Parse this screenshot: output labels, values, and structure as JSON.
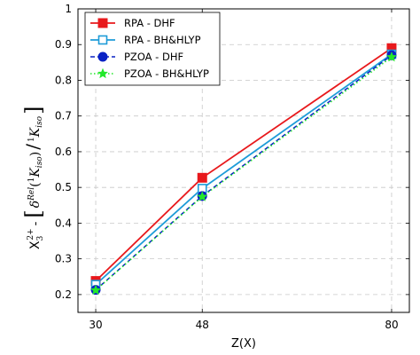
{
  "chart_data": {
    "type": "line",
    "x": [
      30,
      48,
      80
    ],
    "xlabel": "Z(X)",
    "ylabel_prefix": "X",
    "ylabel_sub": "3",
    "ylabel_sup": "2+",
    "ylabel_dash": "-",
    "ylabel_delta": "δ",
    "ylabel_rel": "Rel",
    "ylabel_paren_open": "(",
    "ylabel_paren_close": ")",
    "ylabel_one": "1",
    "ylabel_K": "K",
    "ylabel_iso": "iso",
    "ylabel_slash": "/",
    "xlim": [
      27,
      83
    ],
    "ylim": [
      0.15,
      1.0
    ],
    "xticks": [
      "30",
      "48",
      "80"
    ],
    "yticks": [
      "0.2",
      "0.3",
      "0.4",
      "0.5",
      "0.6",
      "0.7",
      "0.8",
      "0.9",
      "1"
    ],
    "grid": true,
    "legend_position": "top-left",
    "series": [
      {
        "name": "RPA - DHF",
        "values": [
          0.238,
          0.527,
          0.89
        ],
        "color": "#e8191c",
        "dash": "none",
        "marker": "filled-square"
      },
      {
        "name": "RPA - BH&HLYP",
        "values": [
          0.228,
          0.497,
          0.873
        ],
        "color": "#1e9cd8",
        "dash": "none",
        "marker": "open-square"
      },
      {
        "name": "PZOA - DHF",
        "values": [
          0.213,
          0.476,
          0.87
        ],
        "color": "#0a22c4",
        "dash": "dashed",
        "marker": "filled-circle"
      },
      {
        "name": "PZOA - BH&HLYP",
        "values": [
          0.212,
          0.474,
          0.865
        ],
        "color": "#22e82a",
        "dash": "dotted",
        "marker": "star"
      }
    ]
  }
}
